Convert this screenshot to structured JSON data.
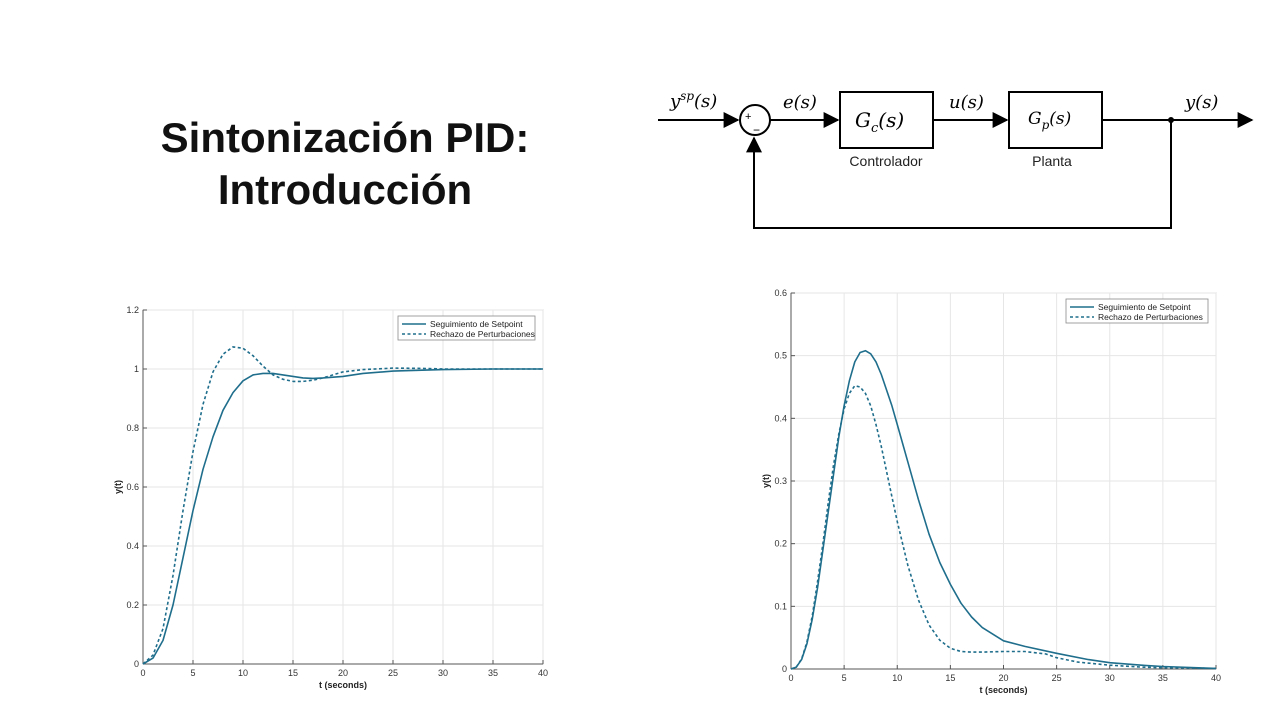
{
  "title": {
    "line1": "Sintonización PID:",
    "line2": "Introducción"
  },
  "block_diagram": {
    "setpoint_label": "y",
    "setpoint_sup": "sp",
    "setpoint_arg": "(s)",
    "error_label": "e(s)",
    "controller_tf": "G",
    "controller_sub": "c",
    "controller_arg": "(s)",
    "controller_caption": "Controlador",
    "control_signal": "u(s)",
    "plant_tf": "G",
    "plant_sub": "p",
    "plant_arg": "(s)",
    "plant_caption": "Planta",
    "output_label": "y(s)",
    "sum_plus": "+",
    "sum_minus": "−"
  },
  "colors": {
    "series_solid": "#1f6e8c",
    "series_dashed": "#1f6e8c",
    "axis": "#555555",
    "grid": "#e6e6e6"
  },
  "chart_data": [
    {
      "type": "line",
      "title": "",
      "xlabel": "t (seconds)",
      "ylabel": "y(t)",
      "xlim": [
        0,
        40
      ],
      "ylim": [
        0,
        1.2
      ],
      "xticks": [
        0,
        5,
        10,
        15,
        20,
        25,
        30,
        35,
        40
      ],
      "yticks": [
        0,
        0.2,
        0.4,
        0.6,
        0.8,
        1,
        1.2
      ],
      "legend_position": "top-right",
      "series": [
        {
          "name": "Seguimiento de Setpoint",
          "style": "solid",
          "x": [
            0,
            1,
            2,
            3,
            4,
            5,
            6,
            7,
            8,
            9,
            10,
            11,
            12,
            13,
            14,
            15,
            16,
            17,
            18,
            20,
            22,
            25,
            30,
            35,
            40
          ],
          "y": [
            0,
            0.02,
            0.08,
            0.2,
            0.36,
            0.52,
            0.66,
            0.77,
            0.86,
            0.92,
            0.96,
            0.98,
            0.985,
            0.985,
            0.98,
            0.975,
            0.97,
            0.968,
            0.97,
            0.975,
            0.985,
            0.993,
            0.998,
            1.0,
            1.0
          ]
        },
        {
          "name": "Rechazo de Perturbaciones",
          "style": "dashed",
          "x": [
            0,
            1,
            2,
            3,
            4,
            5,
            6,
            7,
            8,
            9,
            10,
            11,
            12,
            13,
            14,
            15,
            16,
            17,
            18,
            19,
            20,
            22,
            25,
            28,
            30,
            35,
            40
          ],
          "y": [
            0,
            0.03,
            0.12,
            0.3,
            0.52,
            0.72,
            0.88,
            0.99,
            1.05,
            1.075,
            1.07,
            1.045,
            1.01,
            0.98,
            0.965,
            0.958,
            0.958,
            0.962,
            0.97,
            0.98,
            0.99,
            0.998,
            1.003,
            1.002,
            1.0,
            1.0,
            1.0
          ]
        }
      ]
    },
    {
      "type": "line",
      "title": "",
      "xlabel": "t (seconds)",
      "ylabel": "y(t)",
      "xlim": [
        0,
        40
      ],
      "ylim": [
        0,
        0.6
      ],
      "xticks": [
        0,
        5,
        10,
        15,
        20,
        25,
        30,
        35,
        40
      ],
      "yticks": [
        0,
        0.1,
        0.2,
        0.3,
        0.4,
        0.5,
        0.6
      ],
      "legend_position": "top-right",
      "series": [
        {
          "name": "Seguimiento de Setpoint",
          "style": "solid",
          "x": [
            0,
            0.5,
            1,
            1.5,
            2,
            2.5,
            3,
            3.5,
            4,
            4.5,
            5,
            5.5,
            6,
            6.5,
            7,
            7.5,
            8,
            8.5,
            9,
            9.5,
            10,
            11,
            12,
            13,
            14,
            15,
            16,
            17,
            18,
            20,
            22,
            25,
            28,
            30,
            33,
            35,
            40
          ],
          "y": [
            0,
            0.003,
            0.015,
            0.04,
            0.08,
            0.13,
            0.19,
            0.25,
            0.31,
            0.37,
            0.42,
            0.46,
            0.49,
            0.505,
            0.508,
            0.503,
            0.49,
            0.47,
            0.445,
            0.42,
            0.39,
            0.33,
            0.27,
            0.215,
            0.17,
            0.135,
            0.105,
            0.083,
            0.066,
            0.045,
            0.036,
            0.025,
            0.015,
            0.01,
            0.006,
            0.004,
            0.001
          ]
        },
        {
          "name": "Rechazo de Perturbaciones",
          "style": "dashed",
          "x": [
            0,
            0.5,
            1,
            1.5,
            2,
            2.5,
            3,
            3.5,
            4,
            4.5,
            5,
            5.5,
            6,
            6.5,
            7,
            7.5,
            8,
            8.5,
            9,
            9.5,
            10,
            11,
            12,
            13,
            14,
            15,
            16,
            17,
            18,
            20,
            22,
            24,
            25,
            27,
            30,
            33,
            35,
            40
          ],
          "y": [
            0,
            0.003,
            0.016,
            0.043,
            0.085,
            0.14,
            0.2,
            0.265,
            0.325,
            0.375,
            0.415,
            0.44,
            0.452,
            0.45,
            0.44,
            0.42,
            0.39,
            0.355,
            0.315,
            0.275,
            0.235,
            0.165,
            0.11,
            0.07,
            0.046,
            0.033,
            0.028,
            0.027,
            0.027,
            0.028,
            0.028,
            0.024,
            0.018,
            0.011,
            0.006,
            0.003,
            0.002,
            0.001
          ]
        }
      ]
    }
  ]
}
